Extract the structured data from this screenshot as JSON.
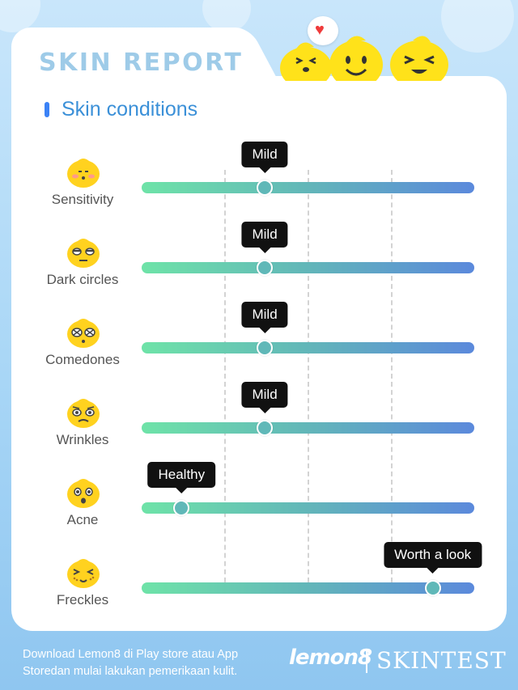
{
  "header": {
    "title": "SKIN REPORT",
    "section_title": "Skin conditions"
  },
  "colors": {
    "track_start": "#6ee3a8",
    "track_end": "#5b89dc",
    "title": "#9ecbe8",
    "section_title": "#3b90d8",
    "section_bar": "#3b82f6",
    "heart": "#ef3b3b",
    "tooltip_bg": "#111111"
  },
  "conditions": [
    {
      "label": "Sensitivity",
      "level": "Mild",
      "value": 0.37,
      "icon": "shy-face-icon"
    },
    {
      "label": "Dark circles",
      "level": "Mild",
      "value": 0.37,
      "icon": "sleepy-face-icon"
    },
    {
      "label": "Comedones",
      "level": "Mild",
      "value": 0.37,
      "icon": "dotted-face-icon"
    },
    {
      "label": "Wrinkles",
      "level": "Mild",
      "value": 0.37,
      "icon": "worried-face-icon"
    },
    {
      "label": "Acne",
      "level": "Healthy",
      "value": 0.12,
      "icon": "surprised-face-icon"
    },
    {
      "label": "Freckles",
      "level": "Worth a look",
      "value": 0.875,
      "icon": "freckled-face-icon"
    }
  ],
  "footer": {
    "text": "Download Lemon8 di Play store atau App Storedan mulai lakukan pemerikaan kulit.",
    "brand": "lemon8",
    "partner": "SKINTEST"
  }
}
